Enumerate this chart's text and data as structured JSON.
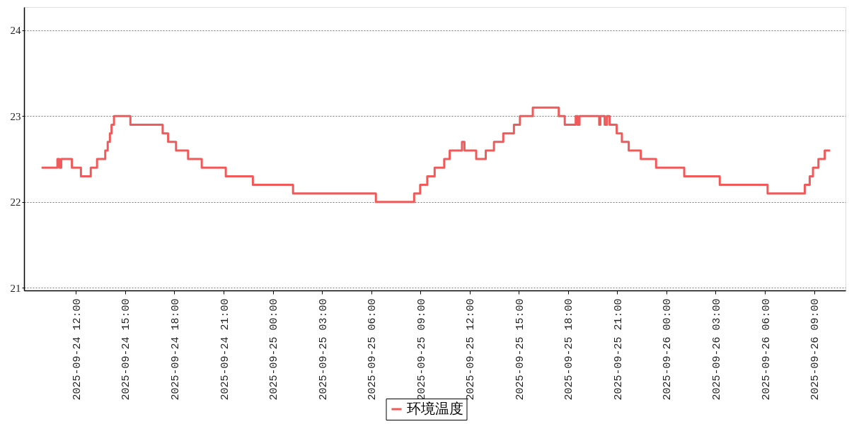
{
  "chart_data": {
    "type": "step",
    "x": [
      "2025-09-24T09:54",
      "2025-09-24T10:52",
      "2025-09-24T10:59",
      "2025-09-24T11:06",
      "2025-09-24T11:45",
      "2025-09-24T12:18",
      "2025-09-24T12:54",
      "2025-09-24T13:17",
      "2025-09-24T13:47",
      "2025-09-24T13:56",
      "2025-09-24T14:04",
      "2025-09-24T14:10",
      "2025-09-24T14:19",
      "2025-09-24T15:19",
      "2025-09-24T17:17",
      "2025-09-24T17:37",
      "2025-09-24T18:06",
      "2025-09-24T18:50",
      "2025-09-24T19:40",
      "2025-09-24T21:08",
      "2025-09-24T22:47",
      "2025-09-25T01:14",
      "2025-09-25T06:17",
      "2025-09-25T08:37",
      "2025-09-25T08:59",
      "2025-09-25T09:25",
      "2025-09-25T09:52",
      "2025-09-25T10:27",
      "2025-09-25T10:47",
      "2025-09-25T11:32",
      "2025-09-25T11:41",
      "2025-09-25T12:24",
      "2025-09-25T12:59",
      "2025-09-25T13:29",
      "2025-09-25T14:03",
      "2025-09-25T14:42",
      "2025-09-25T15:04",
      "2025-09-25T15:51",
      "2025-09-25T17:26",
      "2025-09-25T17:48",
      "2025-09-25T18:28",
      "2025-09-25T18:35",
      "2025-09-25T18:42",
      "2025-09-25T19:54",
      "2025-09-25T19:58",
      "2025-09-25T20:14",
      "2025-09-25T20:22",
      "2025-09-25T20:32",
      "2025-09-25T20:58",
      "2025-09-25T21:17",
      "2025-09-25T21:42",
      "2025-09-25T22:26",
      "2025-09-25T23:22",
      "2025-09-26T01:05",
      "2025-09-26T03:15",
      "2025-09-26T06:10",
      "2025-09-26T08:26",
      "2025-09-26T08:44",
      "2025-09-26T08:56",
      "2025-09-26T09:16",
      "2025-09-26T09:39",
      "2025-09-26T09:59"
    ],
    "series": [
      {
        "name": "环境温度",
        "color": "#f05a5a",
        "values": [
          22.4,
          22.5,
          22.4,
          22.5,
          22.4,
          22.3,
          22.4,
          22.5,
          22.6,
          22.7,
          22.8,
          22.9,
          23.0,
          22.9,
          22.8,
          22.7,
          22.6,
          22.5,
          22.4,
          22.3,
          22.2,
          22.1,
          22.0,
          22.1,
          22.2,
          22.3,
          22.4,
          22.5,
          22.6,
          22.7,
          22.6,
          22.5,
          22.6,
          22.7,
          22.8,
          22.9,
          23.0,
          23.1,
          23.0,
          22.9,
          23.0,
          22.9,
          23.0,
          22.9,
          23.0,
          22.9,
          23.0,
          22.9,
          22.8,
          22.7,
          22.6,
          22.5,
          22.4,
          22.3,
          22.2,
          22.1,
          22.2,
          22.3,
          22.4,
          22.5,
          22.6,
          22.6
        ]
      }
    ],
    "xlim": [
      "2025-09-24T08:50",
      "2025-09-26T10:55"
    ],
    "xticks": [
      {
        "value": "2025-09-24T12:00",
        "label": "2025-09-24 12:00"
      },
      {
        "value": "2025-09-24T15:00",
        "label": "2025-09-24 15:00"
      },
      {
        "value": "2025-09-24T18:00",
        "label": "2025-09-24 18:00"
      },
      {
        "value": "2025-09-24T21:00",
        "label": "2025-09-24 21:00"
      },
      {
        "value": "2025-09-25T00:00",
        "label": "2025-09-25 00:00"
      },
      {
        "value": "2025-09-25T03:00",
        "label": "2025-09-25 03:00"
      },
      {
        "value": "2025-09-25T06:00",
        "label": "2025-09-25 06:00"
      },
      {
        "value": "2025-09-25T09:00",
        "label": "2025-09-25 09:00"
      },
      {
        "value": "2025-09-25T12:00",
        "label": "2025-09-25 12:00"
      },
      {
        "value": "2025-09-25T15:00",
        "label": "2025-09-25 15:00"
      },
      {
        "value": "2025-09-25T18:00",
        "label": "2025-09-25 18:00"
      },
      {
        "value": "2025-09-25T21:00",
        "label": "2025-09-25 21:00"
      },
      {
        "value": "2025-09-26T00:00",
        "label": "2025-09-26 00:00"
      },
      {
        "value": "2025-09-26T03:00",
        "label": "2025-09-26 03:00"
      },
      {
        "value": "2025-09-26T06:00",
        "label": "2025-09-26 06:00"
      },
      {
        "value": "2025-09-26T09:00",
        "label": "2025-09-26 09:00"
      }
    ],
    "ylim": [
      20.97,
      24.27
    ],
    "yticks": [
      21,
      22,
      23,
      24
    ],
    "grid": "y",
    "legend": "bottom"
  }
}
